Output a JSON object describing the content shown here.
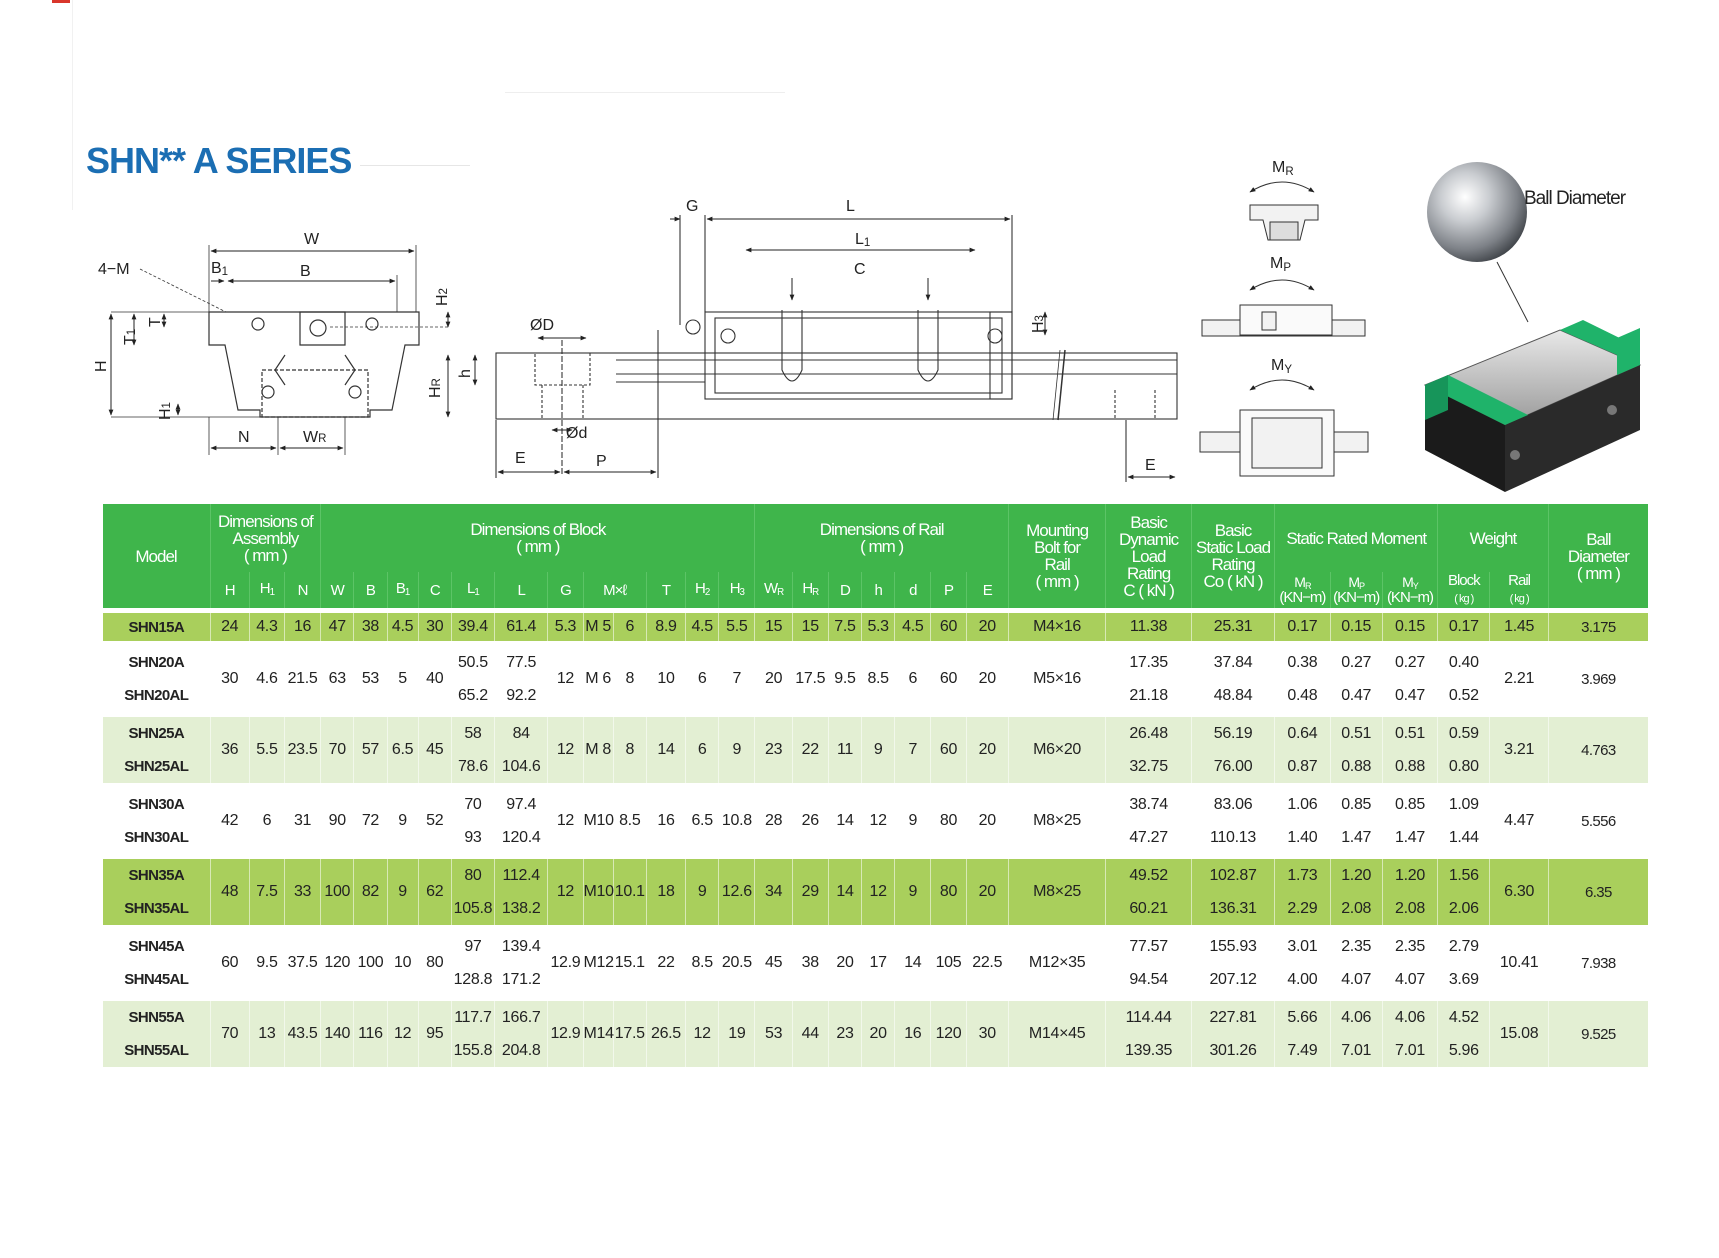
{
  "title": "SHN** A SERIES",
  "colors": {
    "header_green": "#3fb54b",
    "row_strong": "#a9cf5c",
    "row_light": "#e3efd3",
    "row_plain": "#ffffff",
    "title_blue": "#1b6eb3",
    "block_green": "#1fb36a"
  },
  "front_view": {
    "W": "W",
    "four_m": "4−M",
    "B1": {
      "t": "B",
      "s": "1"
    },
    "B": "B",
    "H2": {
      "t": "H",
      "s": "2"
    },
    "T1": {
      "t": "T",
      "s": "1"
    },
    "T": "T",
    "H": "H",
    "H1": {
      "t": "H",
      "s": "1"
    },
    "N": "N",
    "WR": {
      "t": "W",
      "s": "R"
    }
  },
  "side_view": {
    "OD": "ØD",
    "HR": {
      "t": "H",
      "s": "R"
    },
    "h": "h",
    "Od": "Ød",
    "E": "E",
    "P": "P",
    "G": "G",
    "L": "L",
    "L1": {
      "t": "L",
      "s": "1"
    },
    "C": "C",
    "H3": {
      "t": "H",
      "s": "3"
    },
    "E2": "E"
  },
  "moments": {
    "MR": {
      "t": "M",
      "s": "R"
    },
    "MP": {
      "t": "M",
      "s": "P"
    },
    "MY": {
      "t": "M",
      "s": "Y"
    }
  },
  "ball_label": "Ball Diameter",
  "table": {
    "header_top": {
      "model": "Model",
      "assembly": "Dimensions of\nAssembly\n( mm )",
      "block": "Dimensions of Block\n( mm )",
      "rail": "Dimensions of Rail\n( mm )",
      "bolt": "Mounting\nBolt for\nRail\n( mm )",
      "dynamic": "Basic\nDynamic\nLoad\nRating\nC ( kN )",
      "static": "Basic\nStatic Load\nRating\nCo ( kN )",
      "moment": "Static Rated Moment",
      "weight": "Weight",
      "ball": "Ball\nDiameter\n( mm )"
    },
    "header_sub": [
      {
        "t": "H",
        "s": ""
      },
      {
        "t": "H",
        "s": "1"
      },
      {
        "t": "N",
        "s": ""
      },
      {
        "t": "W",
        "s": ""
      },
      {
        "t": "B",
        "s": ""
      },
      {
        "t": "B",
        "s": "1"
      },
      {
        "t": "C",
        "s": ""
      },
      {
        "t": "L",
        "s": "1"
      },
      {
        "t": "L",
        "s": ""
      },
      {
        "t": "G",
        "s": ""
      },
      {
        "t": "M×ℓ",
        "s": ""
      },
      {
        "t": "T",
        "s": ""
      },
      {
        "t": "H",
        "s": "2"
      },
      {
        "t": "H",
        "s": "3"
      },
      {
        "t": "W",
        "s": "R"
      },
      {
        "t": "H",
        "s": "R"
      },
      {
        "t": "D",
        "s": ""
      },
      {
        "t": "h",
        "s": ""
      },
      {
        "t": "d",
        "s": ""
      },
      {
        "t": "P",
        "s": ""
      },
      {
        "t": "E",
        "s": ""
      }
    ],
    "moment_sub": [
      {
        "t": "M",
        "s": "R",
        "u": "(KN−m)"
      },
      {
        "t": "M",
        "s": "P",
        "u": "(KN−m)"
      },
      {
        "t": "M",
        "s": "Y",
        "u": "(KN−m)"
      }
    ],
    "weight_sub": [
      {
        "t": "Block",
        "u": "( kg )"
      },
      {
        "t": "Rail",
        "u": "( kg )"
      }
    ],
    "rows": [
      {
        "style": "strong",
        "models": [
          "SHN15A"
        ],
        "cells": [
          "24",
          "4.3",
          "16",
          "47",
          "38",
          "4.5",
          "30",
          "39.4",
          "61.4",
          "5.3",
          "M 5",
          "6",
          "8.9",
          "4.5",
          "5.5",
          "15",
          "15",
          "7.5",
          "5.3",
          "4.5",
          "60",
          "20",
          "M4×16",
          "11.38",
          "25.31",
          "0.17",
          "0.15",
          "0.15",
          "0.17",
          "1.45",
          "3.175"
        ]
      },
      {
        "style": "plain",
        "models": [
          "SHN20A",
          "SHN20AL"
        ],
        "cells": [
          "30",
          "4.6",
          "21.5",
          "63",
          "53",
          "5",
          "40",
          [
            "50.5",
            "65.2"
          ],
          [
            "77.5",
            "92.2"
          ],
          "12",
          "M 6",
          "8",
          "10",
          "6",
          "7",
          "20",
          "17.5",
          "9.5",
          "8.5",
          "6",
          "60",
          "20",
          "M5×16",
          [
            "17.35",
            "21.18"
          ],
          [
            "37.84",
            "48.84"
          ],
          [
            "0.38",
            "0.48"
          ],
          [
            "0.27",
            "0.47"
          ],
          [
            "0.27",
            "0.47"
          ],
          [
            "0.40",
            "0.52"
          ],
          "2.21",
          "3.969"
        ]
      },
      {
        "style": "light",
        "models": [
          "SHN25A",
          "SHN25AL"
        ],
        "cells": [
          "36",
          "5.5",
          "23.5",
          "70",
          "57",
          "6.5",
          "45",
          [
            "58",
            "78.6"
          ],
          [
            "84",
            "104.6"
          ],
          "12",
          "M 8",
          "8",
          "14",
          "6",
          "9",
          "23",
          "22",
          "11",
          "9",
          "7",
          "60",
          "20",
          "M6×20",
          [
            "26.48",
            "32.75"
          ],
          [
            "56.19",
            "76.00"
          ],
          [
            "0.64",
            "0.87"
          ],
          [
            "0.51",
            "0.88"
          ],
          [
            "0.51",
            "0.88"
          ],
          [
            "0.59",
            "0.80"
          ],
          "3.21",
          "4.763"
        ]
      },
      {
        "style": "plain",
        "models": [
          "SHN30A",
          "SHN30AL"
        ],
        "cells": [
          "42",
          "6",
          "31",
          "90",
          "72",
          "9",
          "52",
          [
            "70",
            "93"
          ],
          [
            "97.4",
            "120.4"
          ],
          "12",
          "M10",
          "8.5",
          "16",
          "6.5",
          "10.8",
          "28",
          "26",
          "14",
          "12",
          "9",
          "80",
          "20",
          "M8×25",
          [
            "38.74",
            "47.27"
          ],
          [
            "83.06",
            "110.13"
          ],
          [
            "1.06",
            "1.40"
          ],
          [
            "0.85",
            "1.47"
          ],
          [
            "0.85",
            "1.47"
          ],
          [
            "1.09",
            "1.44"
          ],
          "4.47",
          "5.556"
        ]
      },
      {
        "style": "strong",
        "models": [
          "SHN35A",
          "SHN35AL"
        ],
        "cells": [
          "48",
          "7.5",
          "33",
          "100",
          "82",
          "9",
          "62",
          [
            "80",
            "105.8"
          ],
          [
            "112.4",
            "138.2"
          ],
          "12",
          "M10",
          "10.1",
          "18",
          "9",
          "12.6",
          "34",
          "29",
          "14",
          "12",
          "9",
          "80",
          "20",
          "M8×25",
          [
            "49.52",
            "60.21"
          ],
          [
            "102.87",
            "136.31"
          ],
          [
            "1.73",
            "2.29"
          ],
          [
            "1.20",
            "2.08"
          ],
          [
            "1.20",
            "2.08"
          ],
          [
            "1.56",
            "2.06"
          ],
          "6.30",
          "6.35"
        ]
      },
      {
        "style": "plain",
        "models": [
          "SHN45A",
          "SHN45AL"
        ],
        "cells": [
          "60",
          "9.5",
          "37.5",
          "120",
          "100",
          "10",
          "80",
          [
            "97",
            "128.8"
          ],
          [
            "139.4",
            "171.2"
          ],
          "12.9",
          "M12",
          "15.1",
          "22",
          "8.5",
          "20.5",
          "45",
          "38",
          "20",
          "17",
          "14",
          "105",
          "22.5",
          "M12×35",
          [
            "77.57",
            "94.54"
          ],
          [
            "155.93",
            "207.12"
          ],
          [
            "3.01",
            "4.00"
          ],
          [
            "2.35",
            "4.07"
          ],
          [
            "2.35",
            "4.07"
          ],
          [
            "2.79",
            "3.69"
          ],
          "10.41",
          "7.938"
        ]
      },
      {
        "style": "light",
        "models": [
          "SHN55A",
          "SHN55AL"
        ],
        "cells": [
          "70",
          "13",
          "43.5",
          "140",
          "116",
          "12",
          "95",
          [
            "117.7",
            "155.8"
          ],
          [
            "166.7",
            "204.8"
          ],
          "12.9",
          "M14",
          "17.5",
          "26.5",
          "12",
          "19",
          "53",
          "44",
          "23",
          "20",
          "16",
          "120",
          "30",
          "M14×45",
          [
            "114.44",
            "139.35"
          ],
          [
            "227.81",
            "301.26"
          ],
          [
            "5.66",
            "7.49"
          ],
          [
            "4.06",
            "7.01"
          ],
          [
            "4.06",
            "7.01"
          ],
          [
            "4.52",
            "5.96"
          ],
          "15.08",
          "9.525"
        ]
      }
    ]
  }
}
